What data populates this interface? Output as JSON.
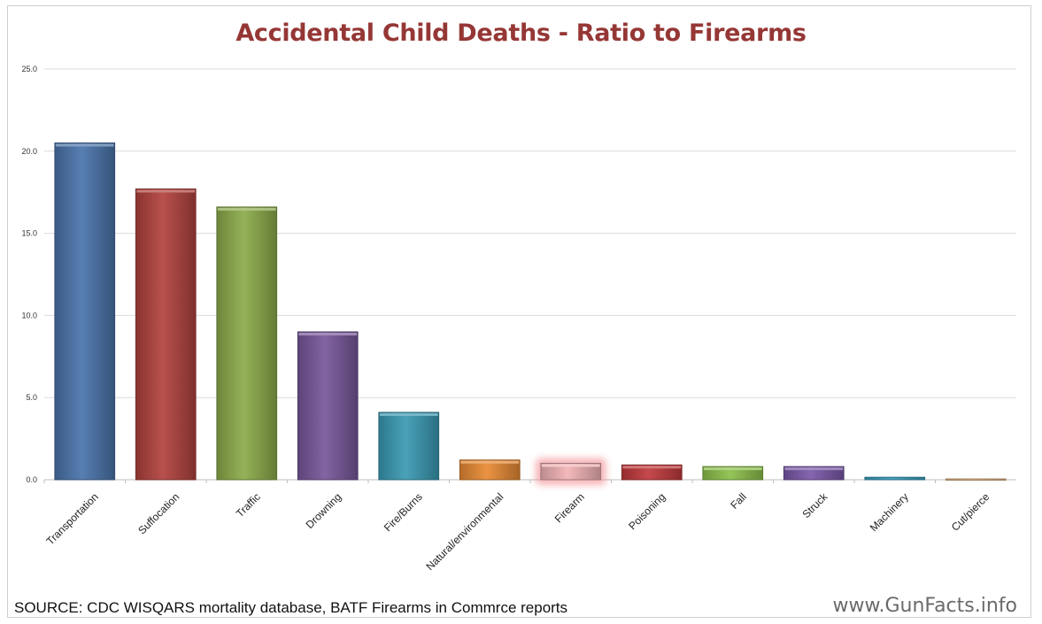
{
  "chart_data": {
    "type": "bar",
    "title": "Accidental Child Deaths - Ratio to Firearms",
    "xlabel": "",
    "ylabel": "",
    "ylim": [
      0,
      25
    ],
    "yticks": [
      "0.0",
      "5.0",
      "10.0",
      "15.0",
      "20.0",
      "25.0"
    ],
    "grid": true,
    "categories": [
      "Transportation",
      "Suffocation",
      "Traffic",
      "Drowning",
      "Fire/Burns",
      "Natural/environmental",
      "Firearm",
      "Poisoning",
      "Fall",
      "Struck",
      "Machinery",
      "Cut/pierce"
    ],
    "values": [
      20.5,
      17.7,
      16.6,
      9.0,
      4.1,
      1.2,
      1.0,
      0.9,
      0.8,
      0.8,
      0.15,
      0.05
    ],
    "colors": [
      "#4a74ab",
      "#b2423e",
      "#8cab4a",
      "#77579a",
      "#3a9ab3",
      "#e88a33",
      "#f2b3b6",
      "#c0393c",
      "#8cc04a",
      "#7a58a8",
      "#3aa0c0",
      "#f0c090"
    ],
    "highlight": "Firearm"
  },
  "footer": {
    "source": "SOURCE: CDC WISQARS mortality database, BATF Firearms in Commrce reports",
    "watermark": "www.GunFacts.info"
  }
}
